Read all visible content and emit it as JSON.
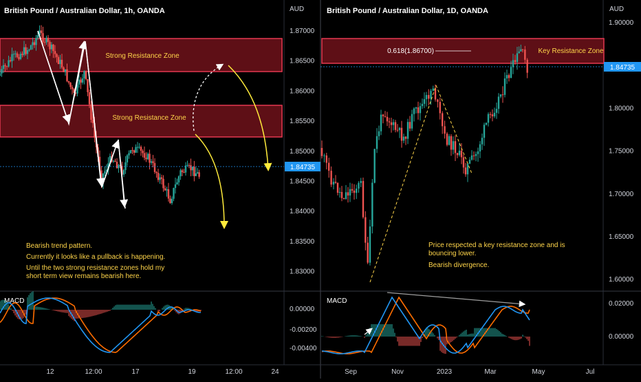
{
  "colors": {
    "bull": "#26a69a",
    "bear": "#ef5350",
    "zone_fill": "#5e0f16",
    "zone_border": "#e53950",
    "annotation": "#ffd54a",
    "macd_line": "#2196f3",
    "signal_line": "#ff6d00",
    "price_tag": "#2196f3",
    "trend_arrow": "#ffffff",
    "projection_arrow": "#ffeb3b"
  },
  "left_chart": {
    "title": "British Pound / Australian Dollar, 1h, OANDA",
    "currency": "AUD",
    "price_tag": "1.84735",
    "y_ticks": [
      "1.87000",
      "1.86500",
      "1.86000",
      "1.85500",
      "1.85000",
      "1.84500",
      "1.84000",
      "1.83500",
      "1.83000"
    ],
    "x_ticks": [
      "12",
      "12:00",
      "17",
      "19",
      "12:00",
      "24"
    ],
    "zones": [
      "Strong Resistance Zone",
      "Strong Resistance Zone"
    ],
    "notes": [
      "Bearish trend pattern.",
      "Currently it looks like a pullback is happening.",
      "Until the two strong resistance zones hold my",
      "short term view remains bearish here."
    ],
    "macd_label": "MACD",
    "macd_ticks": [
      "0.00000",
      "-0.00200",
      "-0.00400"
    ]
  },
  "right_chart": {
    "title": "British Pound / Australian Dollar, 1D, OANDA",
    "currency": "AUD",
    "price_tag": "1.84735",
    "y_ticks": [
      "1.90000",
      "1.85000",
      "1.80000",
      "1.75000",
      "1.70000",
      "1.65000",
      "1.60000"
    ],
    "x_ticks": [
      "Sep",
      "Nov",
      "2023",
      "Mar",
      "May",
      "Jul"
    ],
    "zone": "Key Resistance Zone",
    "fib_label": "0.618(1.86700)",
    "notes": [
      "Price respected a key resistance zone and is",
      "bouncing lower.",
      "Bearish divergence."
    ],
    "macd_label": "MACD",
    "macd_ticks": [
      "0.02000",
      "0.00000"
    ]
  },
  "chart_data": [
    {
      "type": "candlestick",
      "title": "British Pound / Australian Dollar, 1h, OANDA",
      "ylabel": "AUD",
      "ylim": [
        1.828,
        1.873
      ],
      "resistance_zones": [
        [
          1.8634,
          1.8689
        ],
        [
          1.852,
          1.8572
        ]
      ],
      "last_price": 1.84735,
      "path_points": [
        1.8696,
        1.8537,
        1.8686,
        1.844,
        1.8515,
        1.84
      ],
      "macd_range": [
        -0.005,
        0.0025
      ]
    },
    {
      "type": "candlestick",
      "title": "British Pound / Australian Dollar, 1D, OANDA",
      "ylabel": "AUD",
      "ylim": [
        1.585,
        1.92
      ],
      "resistance_zone": [
        1.8545,
        1.8815
      ],
      "fib_level": 1.867,
      "last_price": 1.84735,
      "path_points": [
        1.595,
        1.83,
        1.725,
        1.87
      ],
      "macd_range": [
        -0.006,
        0.028
      ]
    }
  ]
}
